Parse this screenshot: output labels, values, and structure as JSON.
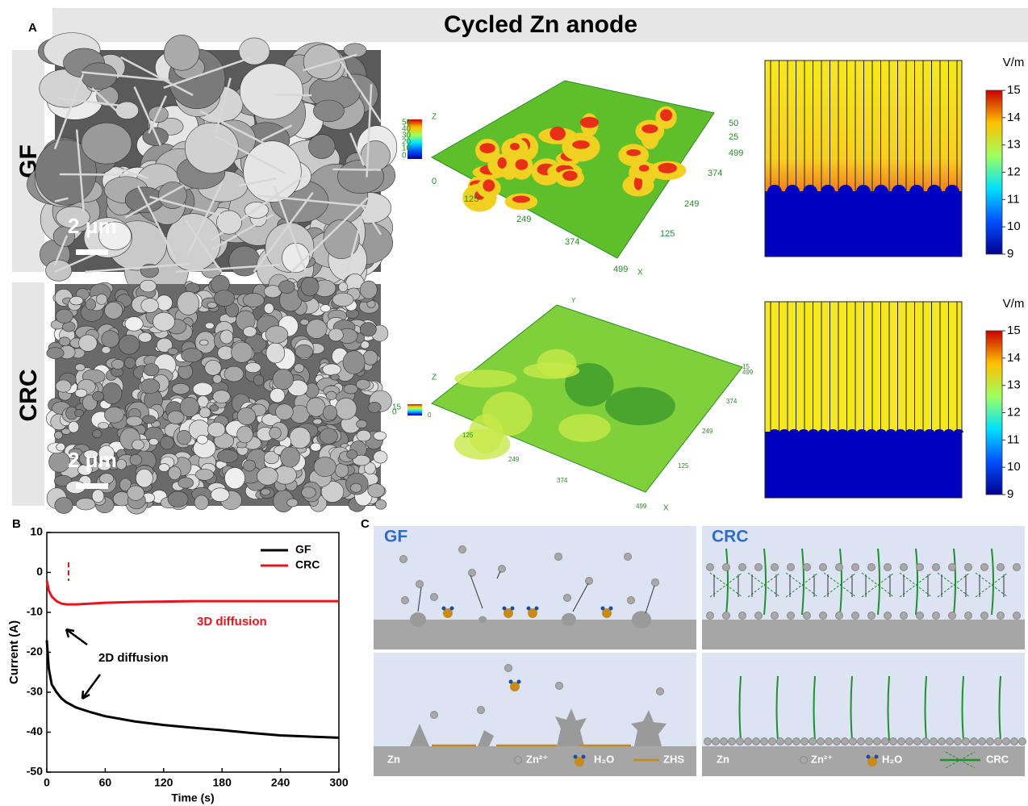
{
  "panel_labels": [
    "A",
    "B",
    "C"
  ],
  "header": {
    "title": "Cycled Zn anode"
  },
  "panel_a": {
    "row_labels": [
      "GF",
      "CRC"
    ],
    "scale_bar": "2 μm",
    "surface_plots": [
      {
        "z_axis": "Z",
        "z_ticks": [
          "50",
          "40",
          "30",
          "20",
          "10",
          "0"
        ],
        "x_axis": "X",
        "x_ticks": [
          "0",
          "125",
          "249",
          "374",
          "499"
        ],
        "y_ticks": [
          "50",
          "25",
          "499",
          "374",
          "249",
          "125"
        ]
      },
      {
        "z_axis": "Z",
        "z_ticks": [
          "15",
          "0"
        ],
        "x_axis": "X",
        "x_ticks": [
          "0",
          "125",
          "249",
          "374",
          "499"
        ],
        "y_axis": "Y",
        "y_ticks": [
          "15",
          "499",
          "374",
          "249",
          "125"
        ]
      }
    ],
    "field_maps": {
      "unit": "V/m",
      "colorbar_lim": [
        9,
        15
      ],
      "colorbar_ticks": [
        15,
        14,
        13,
        12,
        11,
        10,
        9
      ]
    }
  },
  "chart_data": {
    "type": "line",
    "x_label": "Time (s)",
    "y_label": "Current (A)",
    "x": [
      0,
      2,
      5,
      10,
      15,
      20,
      30,
      45,
      60,
      90,
      120,
      150,
      180,
      210,
      240,
      270,
      300
    ],
    "series": [
      {
        "name": "GF",
        "color": "#000000",
        "values": [
          -17,
          -24,
          -28,
          -30,
          -31.5,
          -32.5,
          -33.8,
          -35,
          -36,
          -37.3,
          -38.2,
          -38.9,
          -39.5,
          -40.2,
          -40.8,
          -41.1,
          -41.4
        ]
      },
      {
        "name": "CRC",
        "color": "#e8141b",
        "values": [
          -2,
          -4.5,
          -6,
          -7.2,
          -7.8,
          -8,
          -8,
          -7.8,
          -7.6,
          -7.4,
          -7.3,
          -7.2,
          -7.2,
          -7.2,
          -7.2,
          -7.2,
          -7.2
        ]
      }
    ],
    "xlim": [
      0,
      300
    ],
    "xticks": [
      0,
      60,
      120,
      180,
      240,
      300
    ],
    "ylim": [
      -50,
      10
    ],
    "yticks": [
      10,
      0,
      -10,
      -20,
      -30,
      -40,
      -50
    ],
    "annotations": [
      "3D diffusion",
      "2D diffusion"
    ]
  },
  "panel_c": {
    "titles": [
      "GF",
      "CRC"
    ],
    "legend_gf": [
      "Zn",
      "Zn²⁺",
      "H₂O",
      "ZHS"
    ],
    "legend_crc": [
      "Zn",
      "Zn²⁺",
      "H₂O",
      "CRC"
    ]
  }
}
